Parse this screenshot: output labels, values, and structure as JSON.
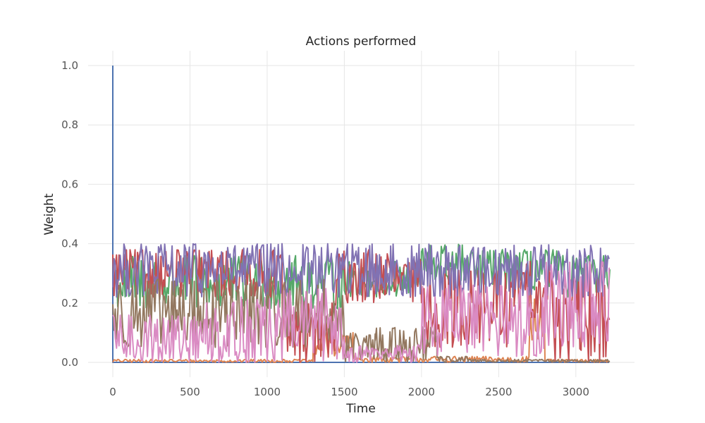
{
  "chart_data": {
    "type": "line",
    "title": "Actions performed",
    "xlabel": "Time",
    "ylabel": "Weight",
    "xlim": [
      -160,
      3380
    ],
    "ylim": [
      -0.05,
      1.05
    ],
    "xticks": [
      0,
      500,
      1000,
      1500,
      2000,
      2500,
      3000
    ],
    "yticks": [
      0.0,
      0.2,
      0.4,
      0.6,
      0.8,
      1.0
    ],
    "xtick_labels": [
      "0",
      "500",
      "1000",
      "1500",
      "2000",
      "2500",
      "3000"
    ],
    "ytick_labels": [
      "0.0",
      "0.2",
      "0.4",
      "0.6",
      "0.8",
      "1.0"
    ],
    "grid": true,
    "x_range": [
      0,
      3220
    ],
    "series": [
      {
        "color": "#4c72b0",
        "initial_value": 1.0,
        "segments": [
          [
            0,
            3220,
            0.0,
            0.0
          ]
        ]
      },
      {
        "color": "#dd8452",
        "segments": [
          [
            0,
            1300,
            0.0,
            0.01
          ],
          [
            1300,
            1560,
            0.02,
            0.1
          ],
          [
            1560,
            2700,
            0.0,
            0.02
          ],
          [
            2700,
            2800,
            0.05,
            0.22
          ],
          [
            2800,
            3220,
            0.0,
            0.01
          ]
        ]
      },
      {
        "color": "#55a868",
        "segments": [
          [
            0,
            1500,
            0.18,
            0.36
          ],
          [
            1500,
            2000,
            0.22,
            0.34
          ],
          [
            2000,
            2300,
            0.26,
            0.4
          ],
          [
            2300,
            2900,
            0.24,
            0.38
          ],
          [
            2900,
            3220,
            0.22,
            0.36
          ]
        ]
      },
      {
        "color": "#c44e52",
        "segments": [
          [
            0,
            1100,
            0.22,
            0.38
          ],
          [
            1100,
            1450,
            0.0,
            0.2
          ],
          [
            1450,
            1800,
            0.2,
            0.38
          ],
          [
            1800,
            2000,
            0.2,
            0.35
          ],
          [
            2000,
            2600,
            0.05,
            0.32
          ],
          [
            2600,
            2850,
            0.15,
            0.34
          ],
          [
            2850,
            3220,
            0.0,
            0.3
          ]
        ]
      },
      {
        "color": "#8172b3",
        "segments": [
          [
            0,
            3220,
            0.22,
            0.4
          ]
        ]
      },
      {
        "color": "#937860",
        "segments": [
          [
            0,
            1500,
            0.05,
            0.28
          ],
          [
            1500,
            1700,
            0.0,
            0.1
          ],
          [
            1700,
            2100,
            0.0,
            0.12
          ],
          [
            2100,
            2300,
            0.0,
            0.02
          ],
          [
            2300,
            3220,
            0.0,
            0.01
          ]
        ]
      },
      {
        "color": "#da8bc3",
        "segments": [
          [
            0,
            600,
            0.0,
            0.16
          ],
          [
            600,
            1100,
            0.0,
            0.22
          ],
          [
            1100,
            1500,
            0.0,
            0.25
          ],
          [
            1500,
            2000,
            0.0,
            0.06
          ],
          [
            2000,
            2800,
            0.02,
            0.26
          ],
          [
            2800,
            3220,
            0.05,
            0.34
          ]
        ]
      }
    ]
  }
}
